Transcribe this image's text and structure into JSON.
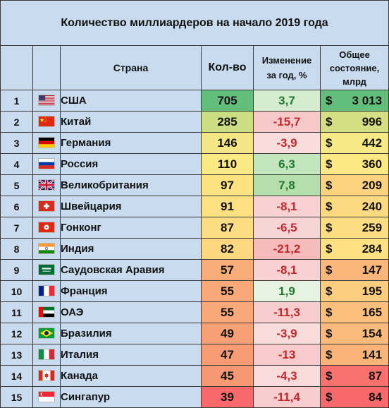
{
  "title": "Количество миллиардеров на начало 2019 года",
  "headers": {
    "country": "Страна",
    "count": "Кол-во",
    "change_line1": "Изменение",
    "change_line2": "за год, %",
    "wealth_line1": "Общее",
    "wealth_line2": "состояние,",
    "wealth_line3": "млрд"
  },
  "colors": {
    "header_bg": "#c9dcef",
    "positive_text": "#1f7a2e",
    "negative_text": "#c0282d"
  },
  "rows": [
    {
      "rank": "1",
      "flag": "usa-flag-icon",
      "country": "США",
      "count": "705",
      "change": "3,7",
      "wealth_currency": "$",
      "wealth": "3 013",
      "count_bg": "#63be7b",
      "change_bg": "#d5eccf",
      "wealth_bg": "#63be7b",
      "change_color": "#1f7a2e"
    },
    {
      "rank": "2",
      "flag": "china-flag-icon",
      "country": "Китай",
      "count": "285",
      "change": "-15,7",
      "wealth_currency": "$",
      "wealth": "996",
      "count_bg": "#cddd82",
      "change_bg": "#f7c9c9",
      "wealth_bg": "#d3df82",
      "change_color": "#c0282d"
    },
    {
      "rank": "3",
      "flag": "germany-flag-icon",
      "country": "Германия",
      "count": "146",
      "change": "-3,9",
      "wealth_currency": "$",
      "wealth": "442",
      "count_bg": "#f3e785",
      "change_bg": "#f9dcdc",
      "wealth_bg": "#f6e884",
      "change_color": "#c0282d"
    },
    {
      "rank": "4",
      "flag": "russia-flag-icon",
      "country": "Россия",
      "count": "110",
      "change": "6,3",
      "wealth_currency": "$",
      "wealth": "360",
      "count_bg": "#fbe983",
      "change_bg": "#c4e6bf",
      "wealth_bg": "#fce983",
      "change_color": "#1f7a2e"
    },
    {
      "rank": "5",
      "flag": "uk-flag-icon",
      "country": "Великобритания",
      "count": "97",
      "change": "7,8",
      "wealth_currency": "$",
      "wealth": "209",
      "count_bg": "#fde282",
      "change_bg": "#b4dfac",
      "wealth_bg": "#fdd37f",
      "change_color": "#1f7a2e"
    },
    {
      "rank": "6",
      "flag": "switzerland-flag-icon",
      "country": "Швейцария",
      "count": "91",
      "change": "-8,1",
      "wealth_currency": "$",
      "wealth": "240",
      "count_bg": "#fde082",
      "change_bg": "#f8d2d2",
      "wealth_bg": "#fdda81",
      "change_color": "#c0282d"
    },
    {
      "rank": "7",
      "flag": "hongkong-flag-icon",
      "country": "Гонконг",
      "count": "87",
      "change": "-6,5",
      "wealth_currency": "$",
      "wealth": "259",
      "count_bg": "#fddd81",
      "change_bg": "#f8d5d5",
      "wealth_bg": "#fddd81",
      "change_color": "#c0282d"
    },
    {
      "rank": "8",
      "flag": "india-flag-icon",
      "country": "Индия",
      "count": "82",
      "change": "-21,2",
      "wealth_currency": "$",
      "wealth": "284",
      "count_bg": "#fdd880",
      "change_bg": "#f6bcbc",
      "wealth_bg": "#fde182",
      "change_color": "#c0282d"
    },
    {
      "rank": "9",
      "flag": "saudi-flag-icon",
      "country": "Саудовская Аравия",
      "count": "57",
      "change": "-8,1",
      "wealth_currency": "$",
      "wealth": "147",
      "count_bg": "#f8ac78",
      "change_bg": "#f8d2d2",
      "wealth_bg": "#fbb77a",
      "change_color": "#c0282d"
    },
    {
      "rank": "10",
      "flag": "france-flag-icon",
      "country": "Франция",
      "count": "55",
      "change": "1,9",
      "wealth_currency": "$",
      "wealth": "195",
      "count_bg": "#f8a977",
      "change_bg": "#e6f3e0",
      "wealth_bg": "#fccd7e",
      "change_color": "#1f7a2e"
    },
    {
      "rank": "11",
      "flag": "uae-flag-icon",
      "country": "ОАЭ",
      "count": "55",
      "change": "-11,3",
      "wealth_currency": "$",
      "wealth": "165",
      "count_bg": "#f8a977",
      "change_bg": "#f7cdcd",
      "wealth_bg": "#fbbf7c",
      "change_color": "#c0282d"
    },
    {
      "rank": "12",
      "flag": "brazil-flag-icon",
      "country": "Бразилия",
      "count": "49",
      "change": "-3,9",
      "wealth_currency": "$",
      "wealth": "154",
      "count_bg": "#f79f75",
      "change_bg": "#f9dcdc",
      "wealth_bg": "#fbba7b",
      "change_color": "#c0282d"
    },
    {
      "rank": "13",
      "flag": "italy-flag-icon",
      "country": "Италия",
      "count": "47",
      "change": "-13",
      "wealth_currency": "$",
      "wealth": "141",
      "count_bg": "#f79c75",
      "change_bg": "#f7cbcb",
      "wealth_bg": "#fab47a",
      "change_color": "#c0282d"
    },
    {
      "rank": "14",
      "flag": "canada-flag-icon",
      "country": "Канада",
      "count": "45",
      "change": "-4,3",
      "wealth_currency": "$",
      "wealth": "87",
      "count_bg": "#f69874",
      "change_bg": "#f9dbdb",
      "wealth_bg": "#f8716c",
      "change_color": "#c0282d"
    },
    {
      "rank": "15",
      "flag": "singapore-flag-icon",
      "country": "Сингапур",
      "count": "39",
      "change": "-11,4",
      "wealth_currency": "$",
      "wealth": "84",
      "count_bg": "#f8696b",
      "change_bg": "#f7cdcd",
      "wealth_bg": "#f8696b",
      "change_color": "#c0282d"
    }
  ]
}
